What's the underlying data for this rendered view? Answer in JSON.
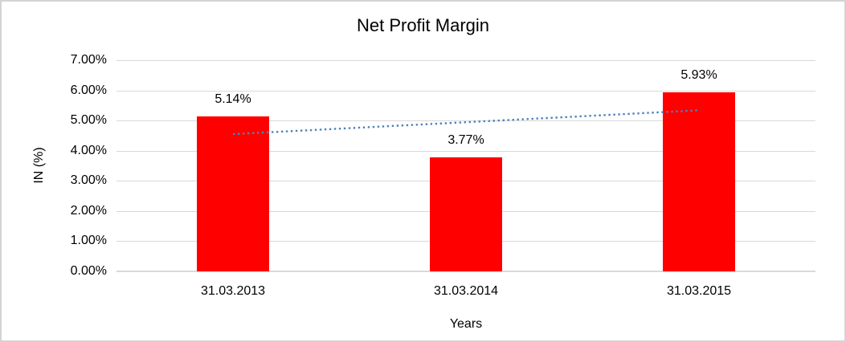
{
  "window": {
    "background": "#FFFFFF",
    "border_color": "#D3D3D3"
  },
  "chart_data": {
    "type": "bar",
    "title": "Net Profit Margin",
    "categories": [
      "31.03.2013",
      "31.03.2014",
      "31.03.2015"
    ],
    "values": [
      5.14,
      3.77,
      5.93
    ],
    "data_labels": [
      "5.14%",
      "3.77%",
      "5.93%"
    ],
    "xlabel": "Years",
    "ylabel": "IN (%)",
    "ylim": [
      0,
      7
    ],
    "yticks": [
      0,
      1,
      2,
      3,
      4,
      5,
      6,
      7
    ],
    "ytick_labels": [
      "0.00%",
      "1.00%",
      "2.00%",
      "3.00%",
      "4.00%",
      "5.00%",
      "6.00%",
      "7.00%"
    ],
    "grid": true,
    "legend": "none",
    "bar_color": "#FF0000",
    "gridline_color": "#D9D9D9",
    "text_color": "#000000",
    "trendline": {
      "type": "linear",
      "line_style": "dotted",
      "color": "#4F81BD",
      "start_value": 4.55,
      "end_value": 5.34
    }
  }
}
